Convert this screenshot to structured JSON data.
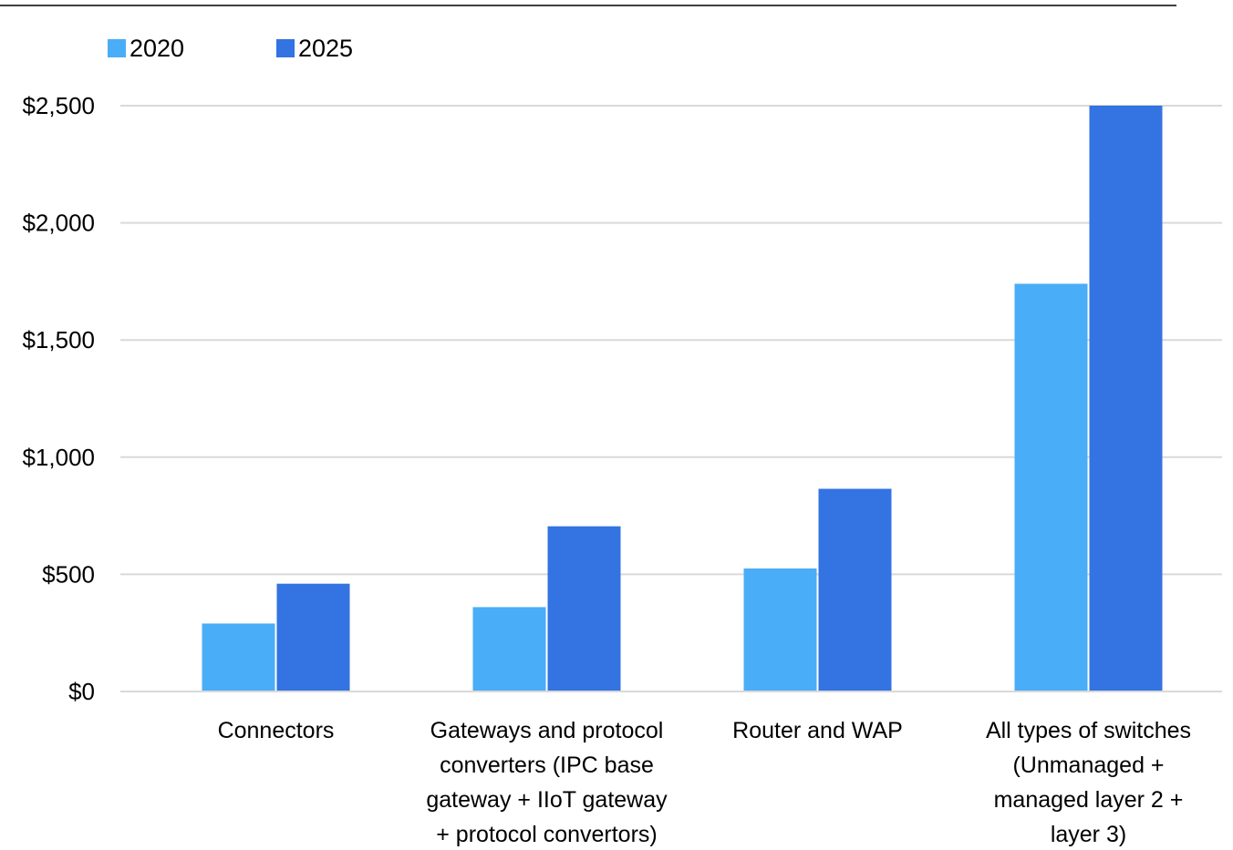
{
  "chart_data": {
    "type": "bar",
    "title": "",
    "xlabel": "",
    "ylabel": "",
    "categories": [
      [
        "Connectors"
      ],
      [
        "Gateways and protocol",
        "converters (IPC base",
        "gateway + IIoT gateway",
        "+ protocol convertors)"
      ],
      [
        "Router and WAP"
      ],
      [
        "All types of switches",
        "(Unmanaged +",
        "managed layer 2 +",
        "layer 3)"
      ]
    ],
    "series": [
      {
        "name": "2020",
        "values": [
          290,
          360,
          525,
          1740
        ],
        "color": "#4aadf7"
      },
      {
        "name": "2025",
        "values": [
          460,
          705,
          865,
          2500
        ],
        "color": "#3373e2"
      }
    ],
    "ylim": [
      0,
      2500
    ],
    "yticks": [
      0,
      500,
      1000,
      1500,
      2000,
      2500
    ],
    "ytick_labels": [
      "$0",
      "$500",
      "$1,000",
      "$1,500",
      "$2,000",
      "$2,500"
    ],
    "grid": true,
    "grid_color": "#d9d9d9",
    "legend_position": "top-left"
  }
}
